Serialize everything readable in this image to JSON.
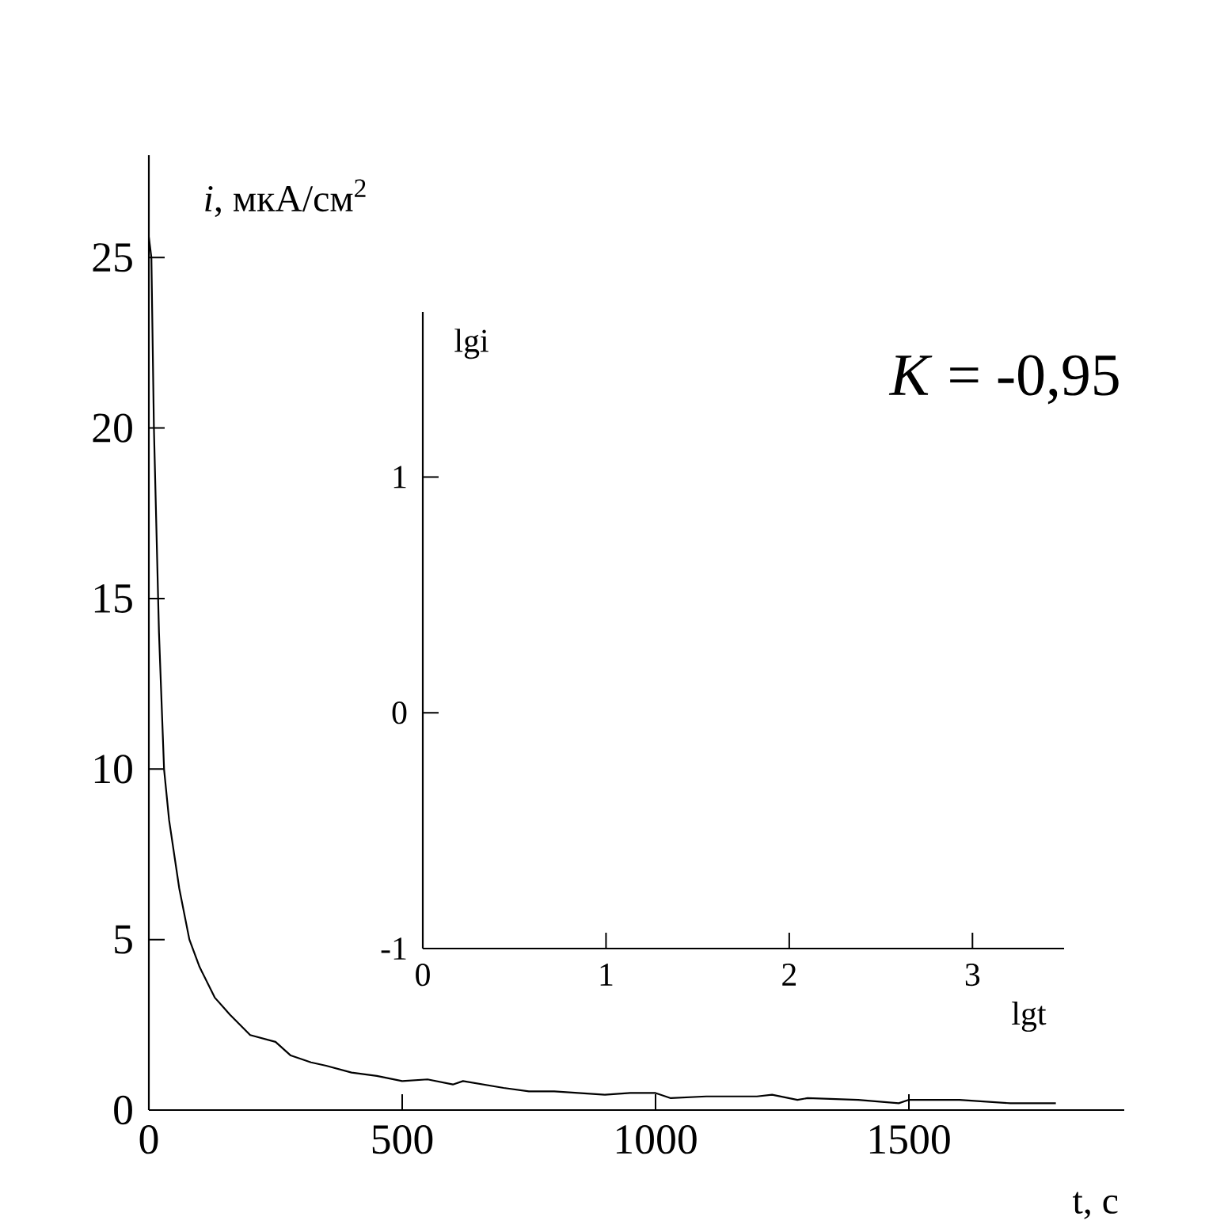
{
  "chart_data": [
    {
      "type": "line",
      "xlabel": "t, с",
      "ylabel": "*i*, мкА/см$^{2}$",
      "annotations": [
        "*K* = -0,95"
      ],
      "xlim": [
        0,
        1925
      ],
      "ylim": [
        0,
        28
      ],
      "xticks": [
        0,
        500,
        1000,
        1500
      ],
      "yticks": [
        0,
        5,
        10,
        15,
        20,
        25
      ],
      "series": [
        {
          "color": "#000000",
          "x": [
            0,
            5,
            10,
            20,
            30,
            40,
            60,
            80,
            100,
            130,
            160,
            200,
            250,
            280,
            320,
            350,
            400,
            450,
            500,
            550,
            600,
            620,
            700,
            750,
            800,
            900,
            950,
            1000,
            1030,
            1100,
            1200,
            1230,
            1280,
            1300,
            1400,
            1480,
            1500,
            1600,
            1700,
            1790
          ],
          "values": [
            25.6,
            25,
            20,
            14,
            10,
            8.5,
            6.5,
            5,
            4.2,
            3.3,
            2.8,
            2.2,
            2.0,
            1.6,
            1.4,
            1.3,
            1.1,
            1.0,
            0.85,
            0.9,
            0.75,
            0.85,
            0.65,
            0.55,
            0.55,
            0.45,
            0.5,
            0.5,
            0.35,
            0.4,
            0.4,
            0.45,
            0.3,
            0.35,
            0.3,
            0.2,
            0.3,
            0.3,
            0.2,
            0.2
          ]
        }
      ]
    },
    {
      "type": "line",
      "xlabel": "lgt",
      "ylabel": "lgi",
      "xlim": [
        0,
        3.5
      ],
      "ylim": [
        -1,
        1.7
      ],
      "xticks": [
        0,
        1,
        2,
        3
      ],
      "yticks": [
        -1,
        0,
        1
      ]
    }
  ]
}
